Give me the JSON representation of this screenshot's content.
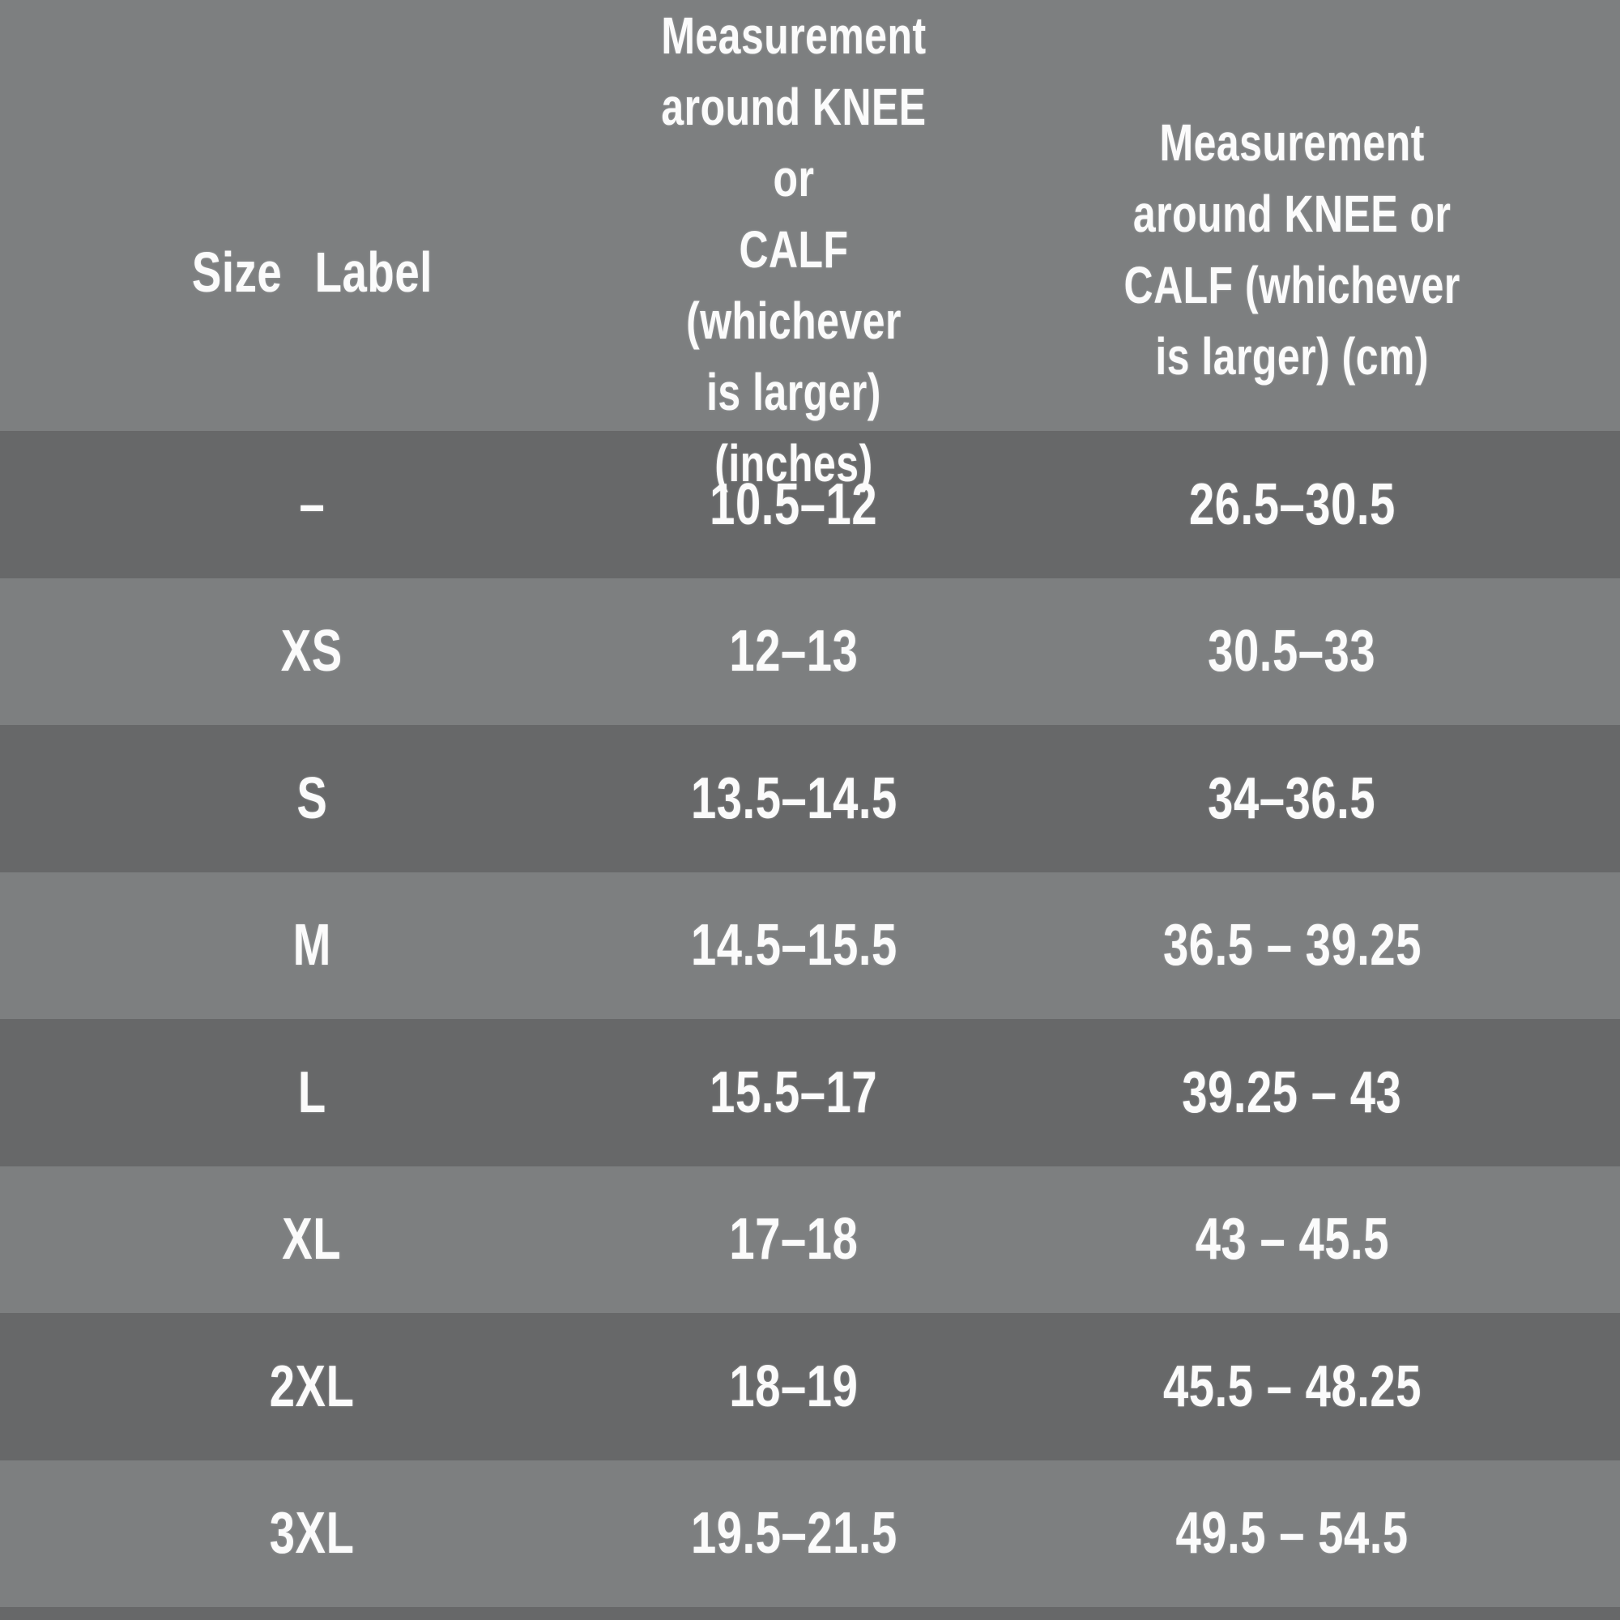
{
  "table": {
    "columns": [
      {
        "label": "Size Label"
      },
      {
        "label": "Measurement\naround KNEE or\nCALF (whichever\nis larger)\n(inches)"
      },
      {
        "label": "Measurement\naround KNEE or\nCALF (whichever\nis larger) (cm)"
      }
    ],
    "rows": [
      {
        "size": "–",
        "inches": "10.5–12",
        "cm": "26.5–30.5"
      },
      {
        "size": "XS",
        "inches": "12–13",
        "cm": "30.5–33"
      },
      {
        "size": "S",
        "inches": "13.5–14.5",
        "cm": "34–36.5"
      },
      {
        "size": "M",
        "inches": "14.5–15.5",
        "cm": "36.5 – 39.25"
      },
      {
        "size": "L",
        "inches": "15.5–17",
        "cm": "39.25 – 43"
      },
      {
        "size": "XL",
        "inches": "17–18",
        "cm": "43 – 45.5"
      },
      {
        "size": "2XL",
        "inches": "18–19",
        "cm": "45.5 – 48.25"
      },
      {
        "size": "3XL",
        "inches": "19.5–21.5",
        "cm": "49.5 – 54.5"
      }
    ]
  },
  "colors": {
    "row_dark": "#676869",
    "row_light": "#7d7f80",
    "header_background": "#7d7f80",
    "text": "#fbfbfb"
  }
}
